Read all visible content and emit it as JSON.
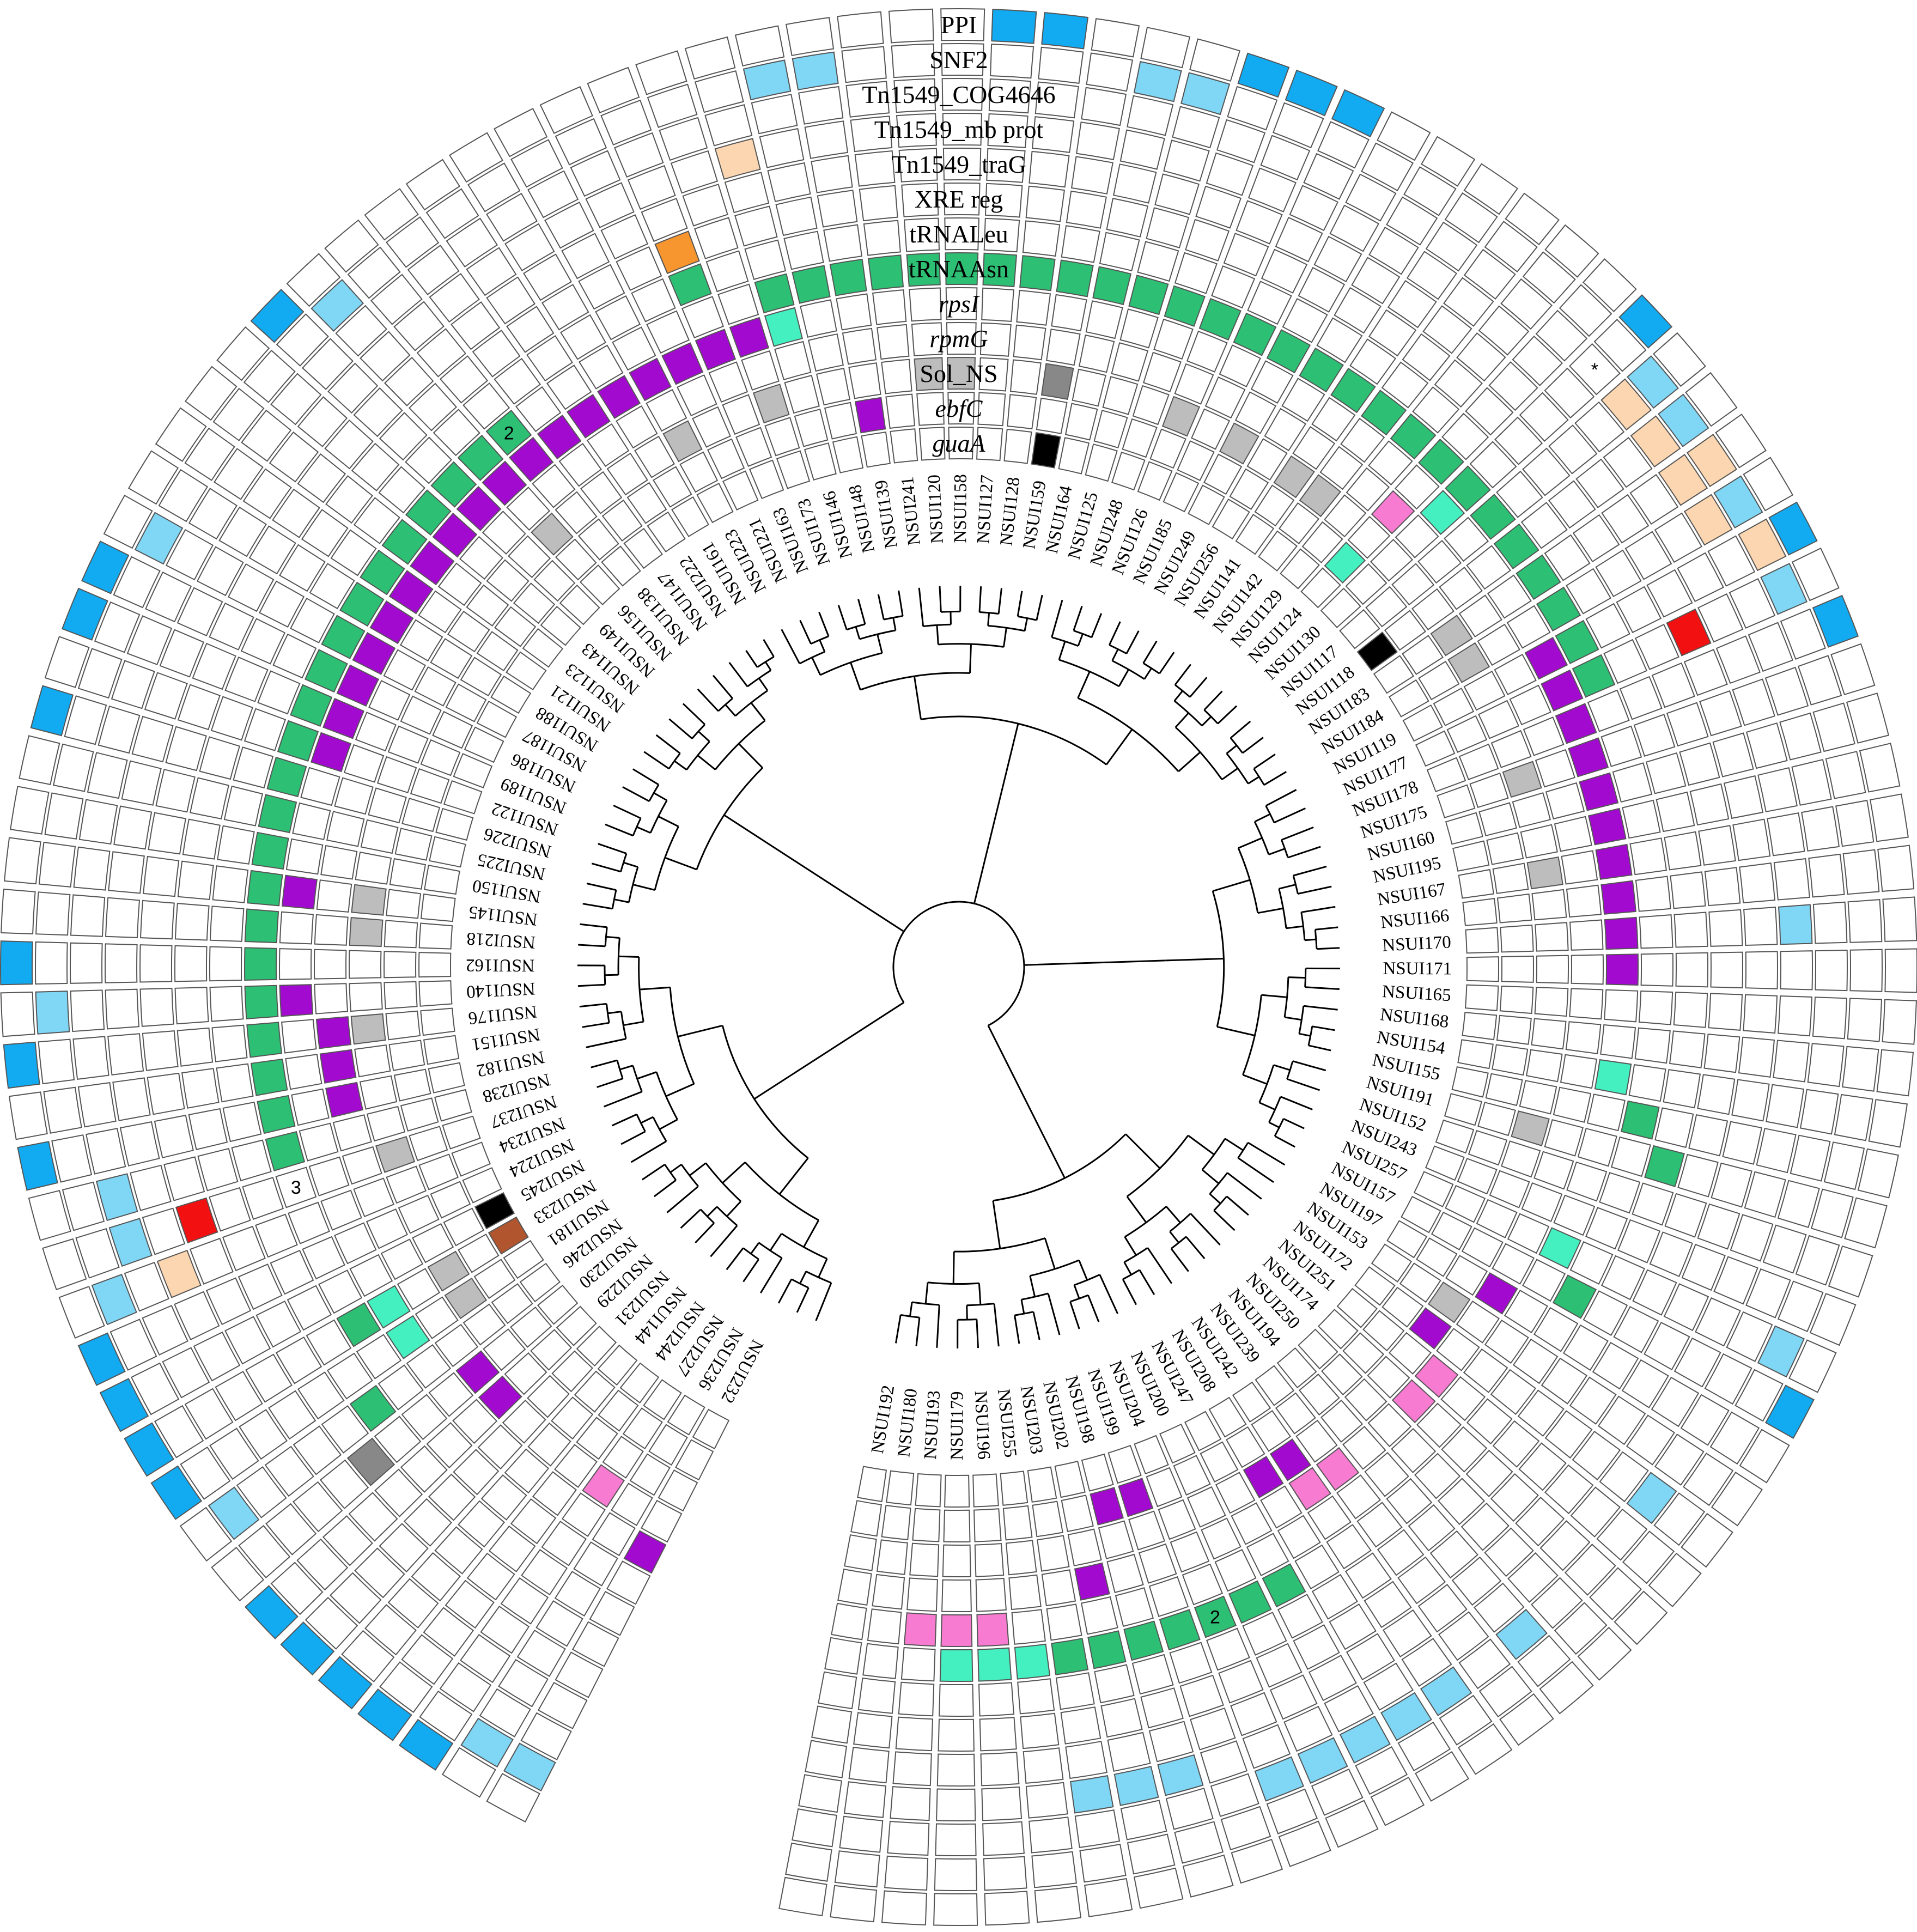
{
  "figure": {
    "title": "Circular phylogeny of NSUI strains with gene presence/absence rings",
    "ring_labels": [
      {
        "text": "PPI",
        "italic": false
      },
      {
        "text": "SNF2",
        "italic": false
      },
      {
        "text": "Tn1549_COG4646",
        "italic": false
      },
      {
        "text": "Tn1549_mb prot",
        "italic": false
      },
      {
        "text": "Tn1549_traG",
        "italic": false
      },
      {
        "text": "XRE reg",
        "italic": false
      },
      {
        "text": "tRNALeu",
        "italic": false
      },
      {
        "text": "tRNAAsn",
        "italic": false
      },
      {
        "text": "rpsI",
        "italic": true
      },
      {
        "text": "rpmG",
        "italic": true
      },
      {
        "text": "Sol_NS",
        "italic": false
      },
      {
        "text": "ebfC",
        "italic": true
      },
      {
        "text": "guaA",
        "italic": true
      }
    ],
    "star_note": "*"
  },
  "colors": {
    "ppi": "#12aaf0",
    "light_blue": "#80d6f5",
    "peach": "#fbd6b0",
    "red": "#f21010",
    "green": "#2dbf74",
    "mint": "#45f0c0",
    "purple": "#a20ad0",
    "pink": "#f77bd0",
    "grey": "#bdbdbd",
    "dark_grey": "#888888",
    "black": "#000000",
    "brown": "#b0552e",
    "orange": "#f7962e",
    "empty": "#ffffff"
  },
  "leaves": [
    "NSUI192",
    "NSUI180",
    "NSUI193",
    "NSUI179",
    "NSUI196",
    "NSUI255",
    "NSUI203",
    "NSUI202",
    "NSUI198",
    "NSUI199",
    "NSUI204",
    "NSUI200",
    "NSUI247",
    "NSUI208",
    "NSUI242",
    "NSUI239",
    "NSUI194",
    "NSUI250",
    "NSUI174",
    "NSUI251",
    "NSUI172",
    "NSUI153",
    "NSUI197",
    "NSUI157",
    "NSUI257",
    "NSUI243",
    "NSUI152",
    "NSUI191",
    "NSUI155",
    "NSUI154",
    "NSUI168",
    "NSUI165",
    "NSUI171",
    "NSUI170",
    "NSUI166",
    "NSUI167",
    "NSUI195",
    "NSUI160",
    "NSUI175",
    "NSUI178",
    "NSUI177",
    "NSUI119",
    "NSUI184",
    "NSUI183",
    "NSUI118",
    "NSUI117",
    "NSUI130",
    "NSUI124",
    "NSUI129",
    "NSUI142",
    "NSUI141",
    "NSUI256",
    "NSUI249",
    "NSUI185",
    "NSUI126",
    "NSUI248",
    "NSUI125",
    "NSUI164",
    "NSUI159",
    "NSUI128",
    "NSUI127",
    "NSUI158",
    "NSUI120",
    "NSUI241",
    "NSUI139",
    "NSUI148",
    "NSUI146",
    "NSUI173",
    "NSUI163",
    "NSUI221",
    "NSUI223",
    "NSUI161",
    "NSUI222",
    "NSUI147",
    "NSUI138",
    "NSUI156",
    "NSUI149",
    "NSUI143",
    "NSUI123",
    "NSUI121",
    "NSUI188",
    "NSUI187",
    "NSUI186",
    "NSUI189",
    "NSUI122",
    "NSUI226",
    "NSUI225",
    "NSUI150",
    "NSUI145",
    "NSUI218",
    "NSUI162",
    "NSUI140",
    "NSUI176",
    "NSUI151",
    "NSUI182",
    "NSUI238",
    "NSUI237",
    "NSUI234",
    "NSUI224",
    "NSUI245",
    "NSUI233",
    "NSUI181",
    "NSUI246",
    "NSUI230",
    "NSUI229",
    "NSUI231",
    "NSUI144",
    "NSUI244",
    "NSUI227",
    "NSUI236",
    "NSUI232"
  ]
}
